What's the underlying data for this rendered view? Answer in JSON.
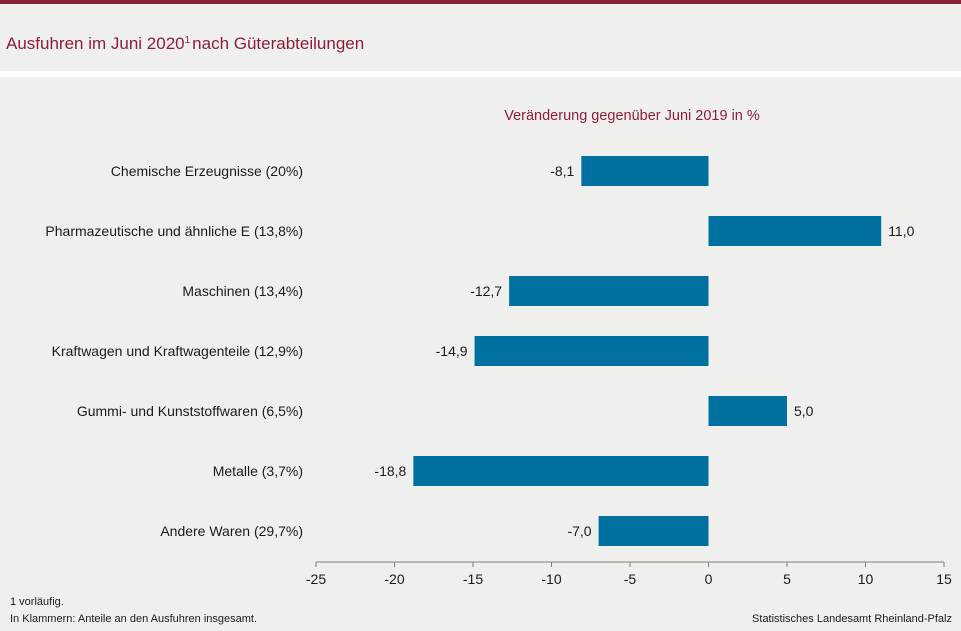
{
  "title": {
    "main": "Ausfuhren im Juni 2020",
    "footnote_marker": "1",
    "rest": "nach Güterabteilungen"
  },
  "footnotes": {
    "line1": "1 vorläufig.",
    "line2": "In Klammern: Anteile an den Ausfuhren insgesamt.",
    "source": "Statistisches Landesamt Rheinland-Pfalz"
  },
  "colors": {
    "bar": "#0070a0",
    "accent": "#8c1f38",
    "background": "#eff0ee"
  },
  "chart_data": {
    "type": "bar",
    "orientation": "horizontal",
    "title": "Veränderung gegenüber Juni 2019 in %",
    "categories": [
      "Chemische Erzeugnisse (20%)",
      "Pharmazeutische und ähnliche E (13,8%)",
      "Maschinen (13,4%)",
      "Kraftwagen und Kraftwagenteile (12,9%)",
      "Gummi- und Kunststoffwaren (6,5%)",
      "Metalle (3,7%)",
      "Andere Waren (29,7%)"
    ],
    "values": [
      -8.1,
      11.0,
      -12.7,
      -14.9,
      5.0,
      -18.8,
      -7.0
    ],
    "value_labels": [
      "-8,1",
      "11,0",
      "-12,7",
      "-14,9",
      "5,0",
      "-18,8",
      "-7,0"
    ],
    "xlim": [
      -25,
      15
    ],
    "ticks": [
      -25,
      -20,
      -15,
      -10,
      -5,
      0,
      5,
      10,
      15
    ],
    "tick_labels": [
      "-25",
      "-20",
      "-15",
      "-10",
      "-5",
      "0",
      "5",
      "10",
      "15"
    ],
    "grid": false,
    "legend": "none"
  }
}
